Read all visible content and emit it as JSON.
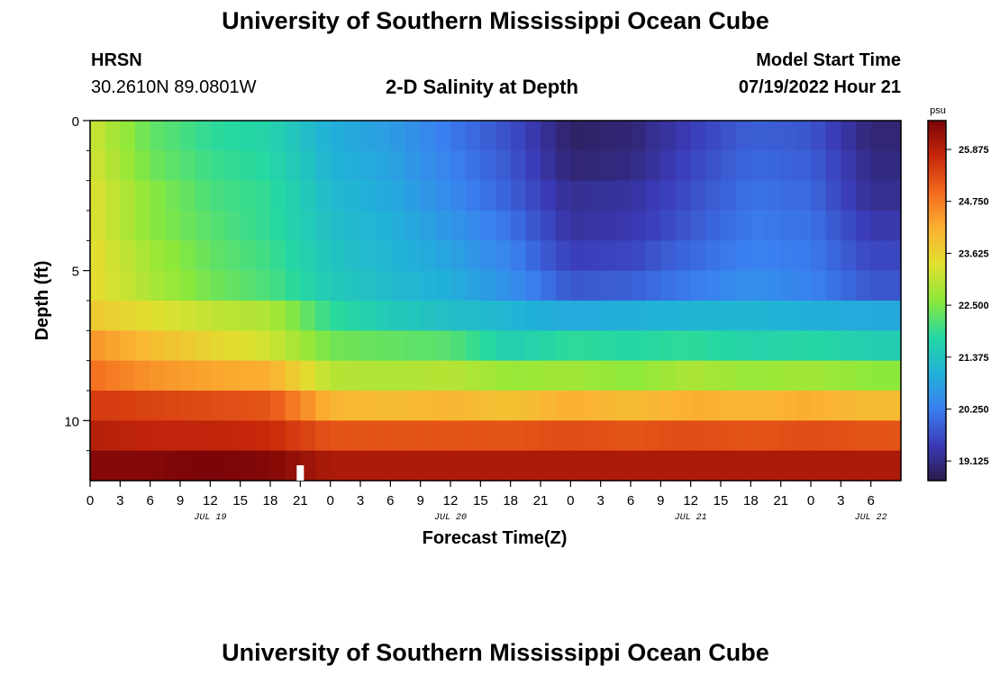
{
  "header": {
    "title": "University of Southern Mississippi Ocean Cube",
    "station": "HRSN",
    "location": "30.2610N  89.0801W",
    "subtitle": "2-D Salinity at Depth",
    "model_label": "Model Start Time",
    "model_time": "07/19/2022 Hour 21"
  },
  "footer": {
    "title": "University of Southern Mississippi Ocean Cube"
  },
  "chart_data": {
    "type": "heatmap",
    "title": "2-D Salinity at Depth",
    "xlabel": "Forecast Time(Z)",
    "ylabel": "Depth (ft)",
    "x_tick_labels": [
      "0",
      "3",
      "6",
      "9",
      "12",
      "15",
      "18",
      "21",
      "0",
      "3",
      "6",
      "9",
      "12",
      "15",
      "18",
      "21",
      "0",
      "3",
      "6",
      "9",
      "12",
      "15",
      "18",
      "21",
      "0",
      "3",
      "6"
    ],
    "date_labels": [
      "JUL 19",
      "JUL 20",
      "JUL 21",
      "JUL 22"
    ],
    "y_tick_labels": [
      "0",
      "5",
      "10"
    ],
    "ylim": [
      12,
      0
    ],
    "depth_bins_ft": [
      0.5,
      1.5,
      2.5,
      3.5,
      4.5,
      5.5,
      6.5,
      7.5,
      8.5,
      9.5,
      10.5,
      11.5
    ],
    "forecast_hours": [
      0,
      6,
      12,
      18,
      24,
      30,
      36,
      42,
      48,
      54,
      60,
      66,
      72,
      78
    ],
    "salinity_psu": [
      [
        23.2,
        22.3,
        21.9,
        21.7,
        21.0,
        20.7,
        20.2,
        19.7,
        18.9,
        19.0,
        19.5,
        19.9,
        19.8,
        19.0
      ],
      [
        23.3,
        22.4,
        22.0,
        21.8,
        21.1,
        20.8,
        20.3,
        19.8,
        19.0,
        19.1,
        19.6,
        20.0,
        19.9,
        19.1
      ],
      [
        23.4,
        22.6,
        22.1,
        21.9,
        21.2,
        20.9,
        20.4,
        19.9,
        19.2,
        19.3,
        19.7,
        20.1,
        20.0,
        19.2
      ],
      [
        23.4,
        22.6,
        22.2,
        21.9,
        21.3,
        21.0,
        20.6,
        20.1,
        19.3,
        19.4,
        19.8,
        20.2,
        20.1,
        19.4
      ],
      [
        23.5,
        22.8,
        22.3,
        22.0,
        21.4,
        21.1,
        20.8,
        20.3,
        19.5,
        19.6,
        20.0,
        20.3,
        20.2,
        19.6
      ],
      [
        23.5,
        22.9,
        22.4,
        22.1,
        21.5,
        21.2,
        21.0,
        20.5,
        19.8,
        19.9,
        20.2,
        20.5,
        20.3,
        19.8
      ],
      [
        23.8,
        23.4,
        23.1,
        22.9,
        21.9,
        21.5,
        21.3,
        21.1,
        20.9,
        21.0,
        21.1,
        21.1,
        21.0,
        20.9
      ],
      [
        24.5,
        24.0,
        23.6,
        23.2,
        22.4,
        22.3,
        22.2,
        21.6,
        21.9,
        21.8,
        21.9,
        21.7,
        21.8,
        21.6
      ],
      [
        24.9,
        24.5,
        24.3,
        24.2,
        23.0,
        22.9,
        23.0,
        22.7,
        22.8,
        22.6,
        22.9,
        22.7,
        22.8,
        22.6
      ],
      [
        25.5,
        25.4,
        25.3,
        25.2,
        24.1,
        24.0,
        24.1,
        23.9,
        24.2,
        24.0,
        24.2,
        24.1,
        24.2,
        24.0
      ],
      [
        25.9,
        25.8,
        25.8,
        25.7,
        25.2,
        25.2,
        25.2,
        25.2,
        25.3,
        25.2,
        25.3,
        25.2,
        25.3,
        25.2
      ],
      [
        26.4,
        26.4,
        26.5,
        26.4,
        26.0,
        26.0,
        26.0,
        26.0,
        26.0,
        26.0,
        26.0,
        26.0,
        26.0,
        26.0
      ]
    ],
    "colorbar": {
      "unit": "psu",
      "range": [
        18.7,
        26.5
      ],
      "tick_labels": [
        "25.875",
        "24.750",
        "23.625",
        "22.500",
        "21.375",
        "20.250",
        "19.125"
      ],
      "tick_values": [
        25.875,
        24.75,
        23.625,
        22.5,
        21.375,
        20.25,
        19.125
      ],
      "colormap": [
        "#2a1a4a",
        "#3b3bb8",
        "#3a80f0",
        "#21b2d8",
        "#25d8a2",
        "#8ce83a",
        "#e0e030",
        "#fbb232",
        "#f36a1e",
        "#c8280a",
        "#7a0408"
      ]
    },
    "marker": {
      "type": "current-time",
      "x_hour": 21,
      "color": "#ffffff"
    },
    "grid": false,
    "legend": "colorbar-right"
  }
}
